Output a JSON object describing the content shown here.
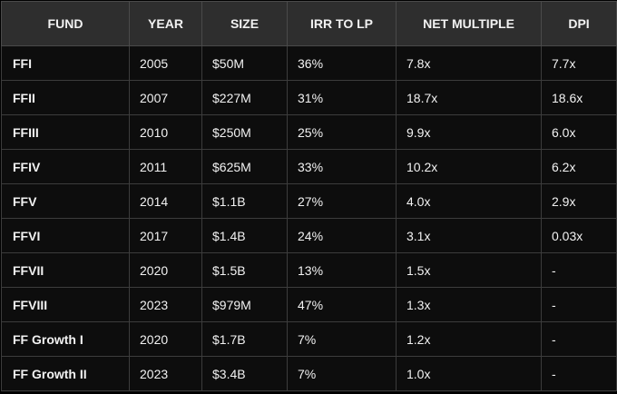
{
  "table": {
    "header": [
      "FUND",
      "YEAR",
      "SIZE",
      "IRR TO LP",
      "NET MULTIPLE",
      "DPI"
    ],
    "rows": [
      [
        "FFI",
        "2005",
        "$50M",
        "36%",
        "7.8x",
        "7.7x"
      ],
      [
        "FFII",
        "2007",
        "$227M",
        "31%",
        "18.7x",
        "18.6x"
      ],
      [
        "FFIII",
        "2010",
        "$250M",
        "25%",
        "9.9x",
        "6.0x"
      ],
      [
        "FFIV",
        "2011",
        "$625M",
        "33%",
        "10.2x",
        "6.2x"
      ],
      [
        "FFV",
        "2014",
        "$1.1B",
        "27%",
        "4.0x",
        "2.9x"
      ],
      [
        "FFVI",
        "2017",
        "$1.4B",
        "24%",
        "3.1x",
        "0.03x"
      ],
      [
        "FFVII",
        "2020",
        "$1.5B",
        "13%",
        "1.5x",
        "-"
      ],
      [
        "FFVIII",
        "2023",
        "$979M",
        "47%",
        "1.3x",
        "-"
      ],
      [
        "FF Growth I",
        "2020",
        "$1.7B",
        "7%",
        "1.2x",
        "-"
      ],
      [
        "FF Growth II",
        "2023",
        "$3.4B",
        "7%",
        "1.0x",
        "-"
      ]
    ]
  }
}
